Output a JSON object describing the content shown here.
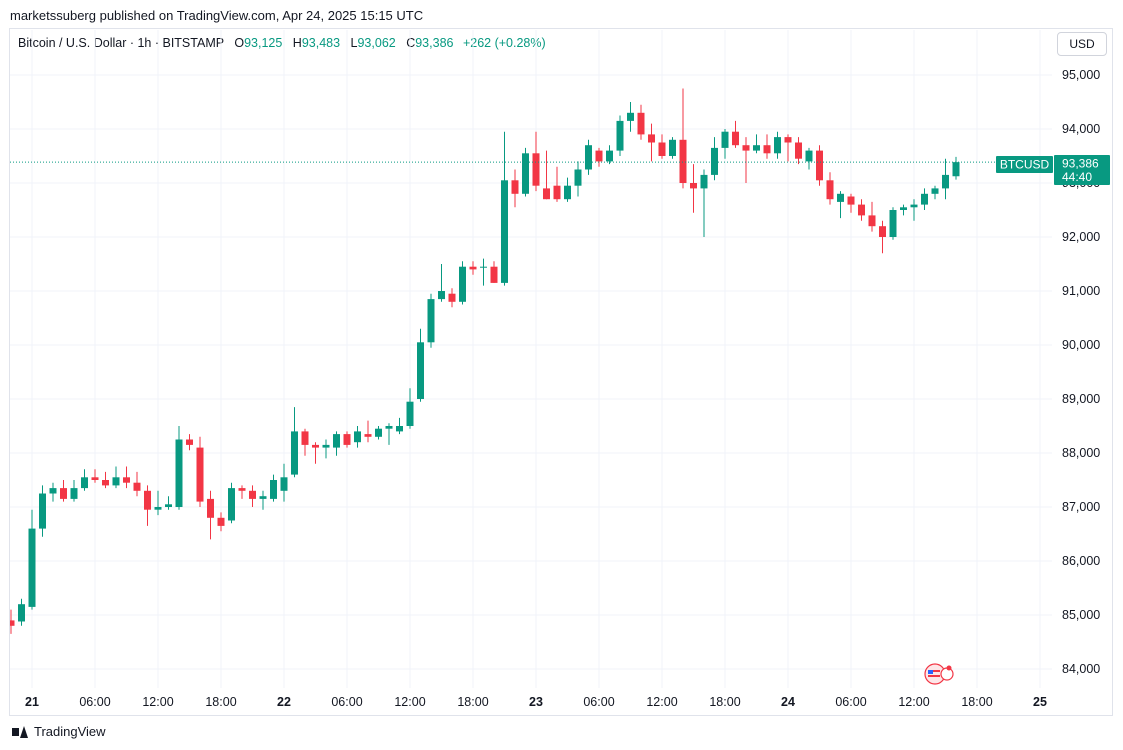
{
  "header": {
    "published": "marketssuberg published on TradingView.com, Apr 24, 2025 15:15 UTC"
  },
  "legend": {
    "symbol": "Bitcoin / U.S. Dollar · 1h · BITSTAMP",
    "o_label": "O",
    "o_value": "93,125",
    "h_label": "H",
    "h_value": "93,483",
    "l_label": "L",
    "l_value": "93,062",
    "c_label": "C",
    "c_value": "93,386",
    "change": "+262 (+0.28%)"
  },
  "currency_button": "USD",
  "price_tag": {
    "ticker": "BTCUSD",
    "price": "93,386",
    "countdown": "44:40"
  },
  "footer": {
    "brand": "TradingView"
  },
  "colors": {
    "up": "#089981",
    "down": "#f23645",
    "grid": "#f0f3fa",
    "text": "#131722"
  },
  "icons": {
    "logo": "tradingview-logo-icon",
    "flag": "news-flag-icon"
  },
  "chart_data": {
    "type": "candlestick",
    "title": "Bitcoin / U.S. Dollar · 1h · BITSTAMP",
    "interval": "1h",
    "ylim": [
      83500,
      95500
    ],
    "y_ticks": [
      84000,
      85000,
      86000,
      87000,
      88000,
      89000,
      90000,
      91000,
      92000,
      93000,
      94000,
      95000
    ],
    "y_tick_labels": [
      "84,000",
      "85,000",
      "86,000",
      "87,000",
      "88,000",
      "89,000",
      "90,000",
      "91,000",
      "92,000",
      "93,000",
      "94,000",
      "95,000"
    ],
    "x_start_hour": 0,
    "x_end_hour": 97,
    "x_ticks": [
      {
        "hour": 0,
        "label": "21",
        "bold": true
      },
      {
        "hour": 6,
        "label": "06:00"
      },
      {
        "hour": 12,
        "label": "12:00"
      },
      {
        "hour": 18,
        "label": "18:00"
      },
      {
        "hour": 24,
        "label": "22",
        "bold": true
      },
      {
        "hour": 30,
        "label": "06:00"
      },
      {
        "hour": 36,
        "label": "12:00"
      },
      {
        "hour": 42,
        "label": "18:00"
      },
      {
        "hour": 48,
        "label": "23",
        "bold": true
      },
      {
        "hour": 54,
        "label": "06:00"
      },
      {
        "hour": 60,
        "label": "12:00"
      },
      {
        "hour": 66,
        "label": "18:00"
      },
      {
        "hour": 72,
        "label": "24",
        "bold": true
      },
      {
        "hour": 78,
        "label": "06:00"
      },
      {
        "hour": 84,
        "label": "12:00"
      },
      {
        "hour": 90,
        "label": "18:00"
      },
      {
        "hour": 96,
        "label": "25",
        "bold": true
      }
    ],
    "last_price": 93386,
    "candles": [
      {
        "t": -2,
        "o": 84900,
        "h": 85100,
        "l": 84650,
        "c": 84800
      },
      {
        "t": -1,
        "o": 84880,
        "h": 85300,
        "l": 84800,
        "c": 85200
      },
      {
        "t": 0,
        "o": 85150,
        "h": 86950,
        "l": 85100,
        "c": 86600
      },
      {
        "t": 1,
        "o": 86600,
        "h": 87400,
        "l": 86450,
        "c": 87250
      },
      {
        "t": 2,
        "o": 87250,
        "h": 87450,
        "l": 87100,
        "c": 87350
      },
      {
        "t": 3,
        "o": 87350,
        "h": 87500,
        "l": 87100,
        "c": 87150
      },
      {
        "t": 4,
        "o": 87150,
        "h": 87500,
        "l": 87100,
        "c": 87350
      },
      {
        "t": 5,
        "o": 87350,
        "h": 87700,
        "l": 87300,
        "c": 87550
      },
      {
        "t": 6,
        "o": 87550,
        "h": 87700,
        "l": 87450,
        "c": 87500
      },
      {
        "t": 7,
        "o": 87500,
        "h": 87650,
        "l": 87350,
        "c": 87400
      },
      {
        "t": 8,
        "o": 87400,
        "h": 87750,
        "l": 87350,
        "c": 87550
      },
      {
        "t": 9,
        "o": 87550,
        "h": 87750,
        "l": 87350,
        "c": 87450
      },
      {
        "t": 10,
        "o": 87450,
        "h": 87650,
        "l": 87200,
        "c": 87300
      },
      {
        "t": 11,
        "o": 87300,
        "h": 87400,
        "l": 86650,
        "c": 86950
      },
      {
        "t": 12,
        "o": 86950,
        "h": 87300,
        "l": 86850,
        "c": 87000
      },
      {
        "t": 13,
        "o": 87000,
        "h": 87200,
        "l": 86950,
        "c": 87050
      },
      {
        "t": 14,
        "o": 87000,
        "h": 88500,
        "l": 86950,
        "c": 88250
      },
      {
        "t": 15,
        "o": 88250,
        "h": 88350,
        "l": 88050,
        "c": 88150
      },
      {
        "t": 16,
        "o": 88100,
        "h": 88300,
        "l": 87000,
        "c": 87100
      },
      {
        "t": 17,
        "o": 87150,
        "h": 87300,
        "l": 86400,
        "c": 86800
      },
      {
        "t": 18,
        "o": 86800,
        "h": 86900,
        "l": 86550,
        "c": 86650
      },
      {
        "t": 19,
        "o": 86750,
        "h": 87450,
        "l": 86700,
        "c": 87350
      },
      {
        "t": 20,
        "o": 87350,
        "h": 87400,
        "l": 87150,
        "c": 87300
      },
      {
        "t": 21,
        "o": 87300,
        "h": 87400,
        "l": 87000,
        "c": 87150
      },
      {
        "t": 22,
        "o": 87150,
        "h": 87300,
        "l": 86950,
        "c": 87200
      },
      {
        "t": 23,
        "o": 87150,
        "h": 87600,
        "l": 87100,
        "c": 87500
      },
      {
        "t": 24,
        "o": 87300,
        "h": 87800,
        "l": 87100,
        "c": 87550
      },
      {
        "t": 25,
        "o": 87600,
        "h": 88850,
        "l": 87550,
        "c": 88400
      },
      {
        "t": 26,
        "o": 88400,
        "h": 88450,
        "l": 87950,
        "c": 88150
      },
      {
        "t": 27,
        "o": 88150,
        "h": 88200,
        "l": 87800,
        "c": 88100
      },
      {
        "t": 28,
        "o": 88100,
        "h": 88250,
        "l": 87900,
        "c": 88150
      },
      {
        "t": 29,
        "o": 88100,
        "h": 88400,
        "l": 87950,
        "c": 88350
      },
      {
        "t": 30,
        "o": 88350,
        "h": 88400,
        "l": 88100,
        "c": 88150
      },
      {
        "t": 31,
        "o": 88200,
        "h": 88500,
        "l": 88100,
        "c": 88400
      },
      {
        "t": 32,
        "o": 88350,
        "h": 88600,
        "l": 88200,
        "c": 88300
      },
      {
        "t": 33,
        "o": 88300,
        "h": 88500,
        "l": 88250,
        "c": 88450
      },
      {
        "t": 34,
        "o": 88450,
        "h": 88550,
        "l": 88150,
        "c": 88500
      },
      {
        "t": 35,
        "o": 88400,
        "h": 88650,
        "l": 88350,
        "c": 88500
      },
      {
        "t": 36,
        "o": 88500,
        "h": 89200,
        "l": 88450,
        "c": 88950
      },
      {
        "t": 37,
        "o": 89000,
        "h": 90300,
        "l": 88950,
        "c": 90050
      },
      {
        "t": 38,
        "o": 90050,
        "h": 90950,
        "l": 89950,
        "c": 90850
      },
      {
        "t": 39,
        "o": 90850,
        "h": 91500,
        "l": 90800,
        "c": 91000
      },
      {
        "t": 40,
        "o": 90950,
        "h": 91050,
        "l": 90700,
        "c": 90800
      },
      {
        "t": 41,
        "o": 90800,
        "h": 91550,
        "l": 90750,
        "c": 91450
      },
      {
        "t": 42,
        "o": 91450,
        "h": 91550,
        "l": 91300,
        "c": 91400
      },
      {
        "t": 43,
        "o": 91450,
        "h": 91600,
        "l": 91100,
        "c": 91450
      },
      {
        "t": 44,
        "o": 91450,
        "h": 91550,
        "l": 91150,
        "c": 91150
      },
      {
        "t": 45,
        "o": 91150,
        "h": 93950,
        "l": 91100,
        "c": 93050
      },
      {
        "t": 46,
        "o": 93050,
        "h": 93250,
        "l": 92550,
        "c": 92800
      },
      {
        "t": 47,
        "o": 92800,
        "h": 93650,
        "l": 92750,
        "c": 93550
      },
      {
        "t": 48,
        "o": 93550,
        "h": 93950,
        "l": 92850,
        "c": 92950
      },
      {
        "t": 49,
        "o": 92900,
        "h": 93600,
        "l": 92700,
        "c": 92700
      },
      {
        "t": 50,
        "o": 92950,
        "h": 93300,
        "l": 92650,
        "c": 92700
      },
      {
        "t": 51,
        "o": 92700,
        "h": 93100,
        "l": 92650,
        "c": 92950
      },
      {
        "t": 52,
        "o": 92950,
        "h": 93400,
        "l": 92750,
        "c": 93250
      },
      {
        "t": 53,
        "o": 93250,
        "h": 93800,
        "l": 93150,
        "c": 93700
      },
      {
        "t": 54,
        "o": 93600,
        "h": 93650,
        "l": 93300,
        "c": 93400
      },
      {
        "t": 55,
        "o": 93400,
        "h": 93700,
        "l": 93350,
        "c": 93600
      },
      {
        "t": 56,
        "o": 93600,
        "h": 94250,
        "l": 93500,
        "c": 94150
      },
      {
        "t": 57,
        "o": 94150,
        "h": 94500,
        "l": 93950,
        "c": 94300
      },
      {
        "t": 58,
        "o": 94300,
        "h": 94450,
        "l": 93800,
        "c": 93900
      },
      {
        "t": 59,
        "o": 93900,
        "h": 94100,
        "l": 93400,
        "c": 93750
      },
      {
        "t": 60,
        "o": 93750,
        "h": 93900,
        "l": 93450,
        "c": 93500
      },
      {
        "t": 61,
        "o": 93500,
        "h": 93850,
        "l": 93450,
        "c": 93800
      },
      {
        "t": 62,
        "o": 93800,
        "h": 94750,
        "l": 92900,
        "c": 93000
      },
      {
        "t": 63,
        "o": 93000,
        "h": 93350,
        "l": 92450,
        "c": 92900
      },
      {
        "t": 64,
        "o": 92900,
        "h": 93250,
        "l": 92000,
        "c": 93150
      },
      {
        "t": 65,
        "o": 93150,
        "h": 93850,
        "l": 93050,
        "c": 93650
      },
      {
        "t": 66,
        "o": 93650,
        "h": 94000,
        "l": 93450,
        "c": 93950
      },
      {
        "t": 67,
        "o": 93950,
        "h": 94150,
        "l": 93650,
        "c": 93700
      },
      {
        "t": 68,
        "o": 93700,
        "h": 93850,
        "l": 93000,
        "c": 93600
      },
      {
        "t": 69,
        "o": 93600,
        "h": 93900,
        "l": 93550,
        "c": 93700
      },
      {
        "t": 70,
        "o": 93700,
        "h": 93900,
        "l": 93450,
        "c": 93550
      },
      {
        "t": 71,
        "o": 93550,
        "h": 93950,
        "l": 93450,
        "c": 93850
      },
      {
        "t": 72,
        "o": 93850,
        "h": 93900,
        "l": 93400,
        "c": 93750
      },
      {
        "t": 73,
        "o": 93750,
        "h": 93850,
        "l": 93350,
        "c": 93450
      },
      {
        "t": 74,
        "o": 93400,
        "h": 93650,
        "l": 93250,
        "c": 93600
      },
      {
        "t": 75,
        "o": 93600,
        "h": 93700,
        "l": 92950,
        "c": 93050
      },
      {
        "t": 76,
        "o": 93050,
        "h": 93200,
        "l": 92600,
        "c": 92700
      },
      {
        "t": 77,
        "o": 92650,
        "h": 92850,
        "l": 92350,
        "c": 92800
      },
      {
        "t": 78,
        "o": 92750,
        "h": 92800,
        "l": 92450,
        "c": 92600
      },
      {
        "t": 79,
        "o": 92600,
        "h": 92700,
        "l": 92300,
        "c": 92400
      },
      {
        "t": 80,
        "o": 92400,
        "h": 92650,
        "l": 92100,
        "c": 92200
      },
      {
        "t": 81,
        "o": 92200,
        "h": 92300,
        "l": 91700,
        "c": 92000
      },
      {
        "t": 82,
        "o": 92000,
        "h": 92550,
        "l": 91950,
        "c": 92500
      },
      {
        "t": 83,
        "o": 92500,
        "h": 92600,
        "l": 92400,
        "c": 92550
      },
      {
        "t": 84,
        "o": 92550,
        "h": 92700,
        "l": 92300,
        "c": 92600
      },
      {
        "t": 85,
        "o": 92600,
        "h": 92900,
        "l": 92500,
        "c": 92800
      },
      {
        "t": 86,
        "o": 92800,
        "h": 92950,
        "l": 92700,
        "c": 92900
      },
      {
        "t": 87,
        "o": 92900,
        "h": 93450,
        "l": 92700,
        "c": 93150
      },
      {
        "t": 88,
        "o": 93125,
        "h": 93483,
        "l": 93062,
        "c": 93386
      }
    ]
  }
}
